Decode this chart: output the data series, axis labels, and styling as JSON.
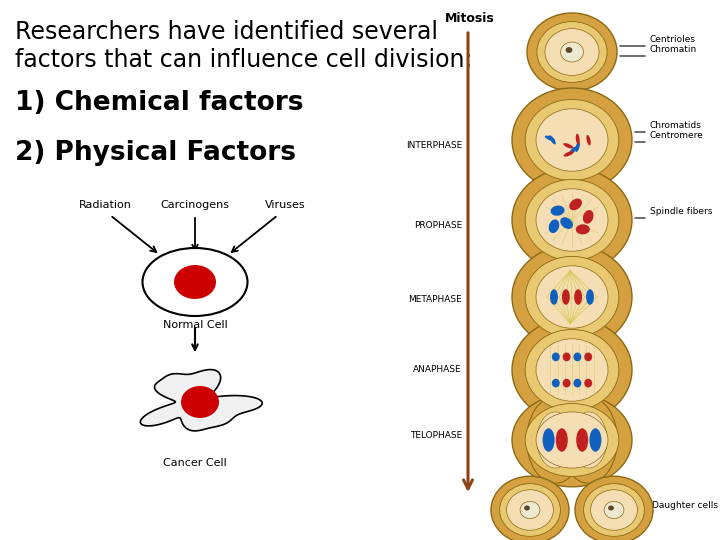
{
  "bg_color": "#ffffff",
  "title_line1": "Researchers have identified several",
  "title_line2": "factors that can influence cell division:",
  "title_fontsize": 17,
  "item1": "1) Chemical factors",
  "item2": "2) Physical Factors",
  "item_fontsize": 19,
  "mitosis_label": "Mitosis",
  "phases": [
    "INTERPHASE",
    "PROPHASE",
    "METAPHASE",
    "ANAPHASE",
    "TELOPHASE"
  ],
  "arrow_color": "#8B4513",
  "cell_outer_color": "#D4A040",
  "cell_mid_color": "#E8C870",
  "cell_inner_color": "#F5DEB3",
  "radiation_label": "Radiation",
  "carcinogens_label": "Carcinogens",
  "viruses_label": "Viruses",
  "normal_cell_label": "Normal Cell",
  "cancer_cell_label": "Cancer Cell",
  "right_labels": [
    "Centrioles",
    "Chromatin",
    "Chromatids",
    "Centromere",
    "Spindle fibers",
    "Daughter cells"
  ]
}
